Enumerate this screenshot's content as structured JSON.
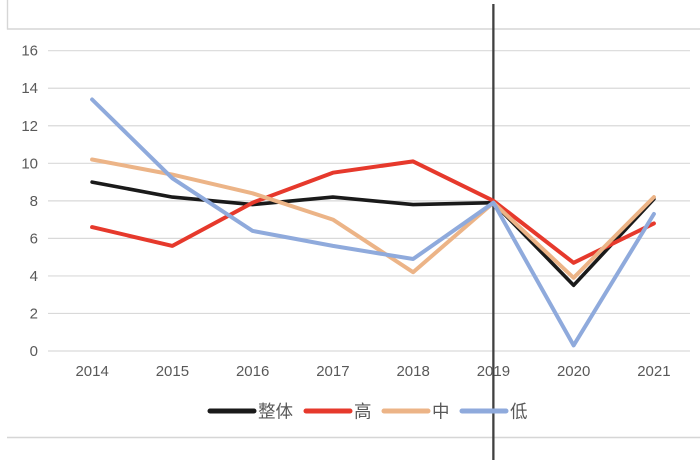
{
  "chart_data": {
    "type": "line",
    "title": "",
    "categories": [
      "2014",
      "2015",
      "2016",
      "2017",
      "2018",
      "2019",
      "2020",
      "2021"
    ],
    "series": [
      {
        "key": "overall",
        "name": "整体",
        "color": "#1a1a1a",
        "values": [
          9.0,
          8.2,
          7.8,
          8.2,
          7.8,
          7.9,
          3.5,
          8.1
        ]
      },
      {
        "key": "high",
        "name": "高",
        "color": "#e6392c",
        "values": [
          6.6,
          5.6,
          7.9,
          9.5,
          10.1,
          8.0,
          4.7,
          6.8
        ]
      },
      {
        "key": "mid",
        "name": "中",
        "color": "#ecb487",
        "values": [
          10.2,
          9.4,
          8.4,
          7.0,
          4.2,
          7.9,
          3.9,
          8.2
        ]
      },
      {
        "key": "low",
        "name": "低",
        "color": "#8faadc",
        "values": [
          13.4,
          9.2,
          6.4,
          5.6,
          4.9,
          7.9,
          0.3,
          7.3
        ]
      }
    ],
    "xlabel": "",
    "ylabel": "",
    "ylim": [
      0,
      16
    ],
    "ytick_step": 2,
    "y_ticks": [
      "0",
      "2",
      "4",
      "6",
      "8",
      "10",
      "12",
      "14",
      "16"
    ],
    "grid": true,
    "legend_position": "bottom",
    "annotation": {
      "type": "vertical-line",
      "at_category": "2019",
      "color": "#404040"
    }
  },
  "colors": {
    "gridline": "#d9d9d9",
    "axis_label": "#595959",
    "sheet_border": "#d6d6d6",
    "background": "#ffffff"
  }
}
